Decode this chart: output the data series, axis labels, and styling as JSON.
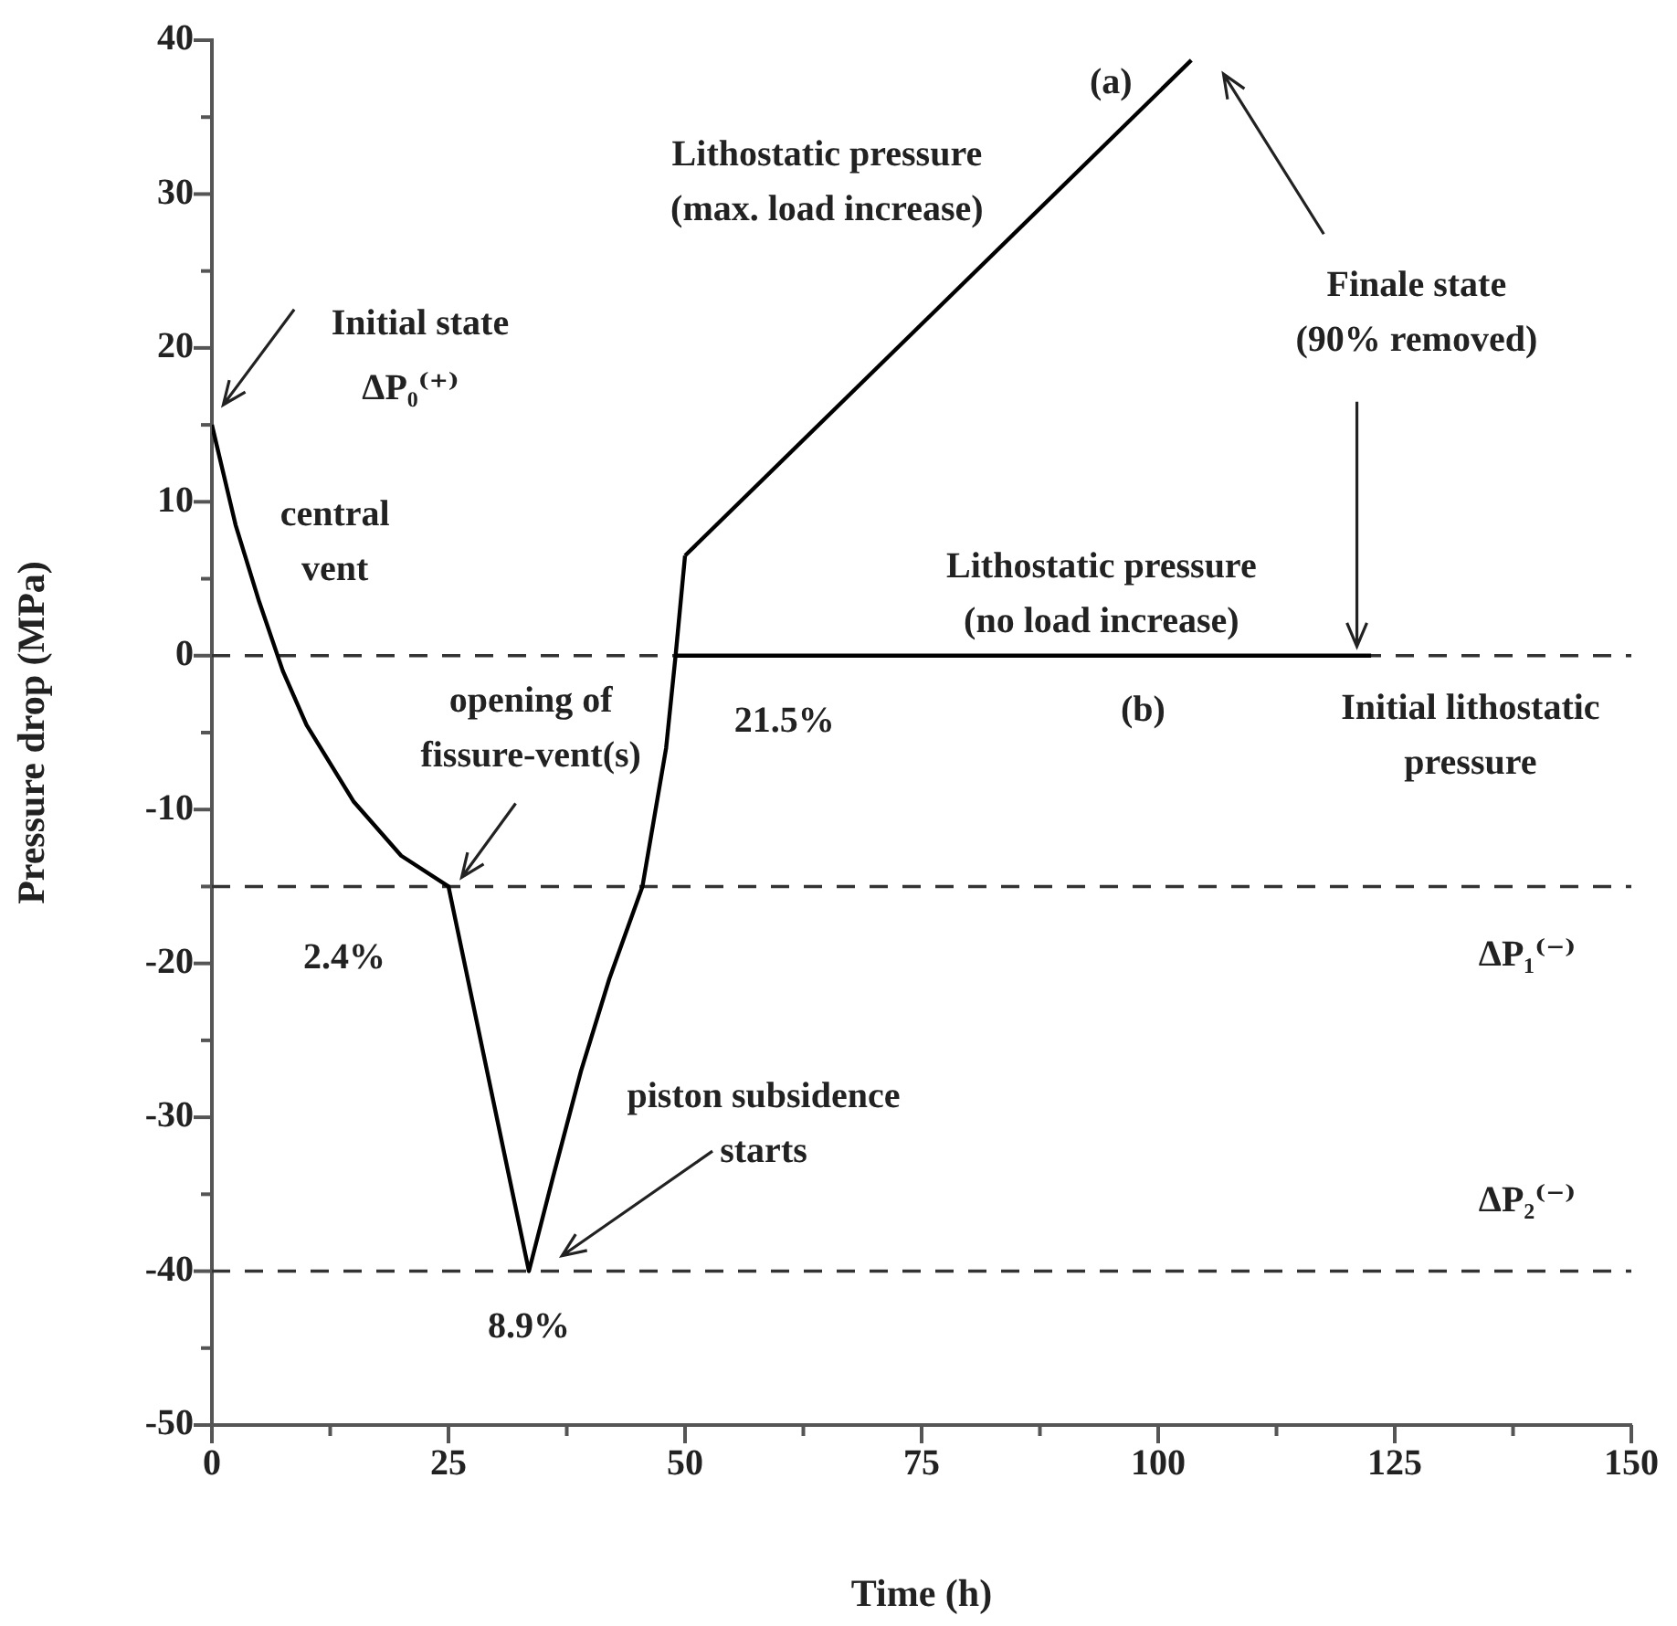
{
  "chart_data": {
    "type": "line",
    "xlabel": "Time (h)",
    "ylabel": "Pressure drop (MPa)",
    "xlim": [
      0,
      150
    ],
    "ylim": [
      -50,
      40
    ],
    "xticks": [
      0,
      {
        "value": 12.5,
        "label": null
      },
      25,
      {
        "value": 37.5,
        "label": null
      },
      50,
      {
        "value": 62.5,
        "label": null
      },
      75,
      {
        "value": 87.5,
        "label": null
      },
      100,
      {
        "value": 112.5,
        "label": null
      },
      125,
      {
        "value": 137.5,
        "label": null
      },
      150
    ],
    "yticks": [
      -50,
      {
        "value": -45,
        "label": null
      },
      -40,
      {
        "value": -35,
        "label": null
      },
      -30,
      {
        "value": -25,
        "label": null
      },
      -20,
      {
        "value": -15,
        "label": null
      },
      -10,
      {
        "value": -5,
        "label": null
      },
      0,
      {
        "value": 5,
        "label": null
      },
      10,
      {
        "value": 15,
        "label": null
      },
      20,
      {
        "value": 25,
        "label": null
      },
      30,
      {
        "value": 35,
        "label": null
      },
      40
    ],
    "series": [
      {
        "color": "#000000",
        "x": [
          0,
          2.5,
          5,
          7.5,
          10,
          15,
          20,
          25,
          33.5,
          36,
          39,
          42,
          45.5,
          48,
          49,
          50
        ],
        "values": [
          15,
          8.5,
          3.5,
          -1,
          -4.5,
          -9.5,
          -13,
          -15,
          -40,
          -34,
          -27,
          -21,
          -15,
          -6,
          0,
          6.5
        ]
      },
      {
        "color": "#000000",
        "x": [
          50,
          103.5
        ],
        "values": [
          6.5,
          38.7
        ]
      },
      {
        "color": "#000000",
        "x": [
          49,
          122.5
        ],
        "values": [
          0,
          0
        ]
      }
    ],
    "ref_lines": [
      {
        "axis": "y",
        "value": 0,
        "color": "#333333",
        "line_style": "dashed"
      },
      {
        "axis": "y",
        "value": -15,
        "color": "#333333",
        "line_style": "dashed"
      },
      {
        "axis": "y",
        "value": -40,
        "color": "#333333",
        "line_style": "dashed"
      }
    ],
    "annotations": [
      "Initial state",
      "ΔP₀⁽⁺⁾",
      "central\nvent",
      "opening of\nfissure-vent(s)",
      "2.4%",
      "piston subsidence\nstarts",
      "8.9%",
      "21.5%",
      "Lithostatic pressure\n(max. load increase)",
      "(a)",
      "Finale state\n(90% removed)",
      "Lithostatic pressure\n(no load increase)",
      "(b)",
      "Initial lithostatic\npressure",
      "ΔP₁⁽⁻⁾",
      "ΔP₂⁽⁻⁾"
    ],
    "grid": false,
    "legend": false,
    "marker": "none",
    "line_style": "solid"
  }
}
